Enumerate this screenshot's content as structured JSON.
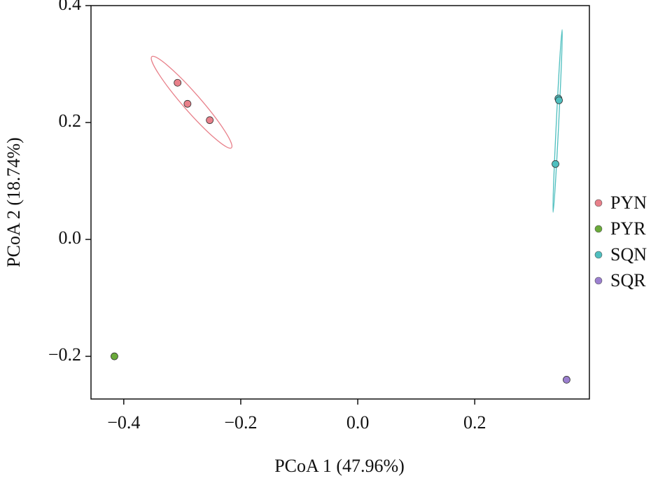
{
  "chart_data": {
    "type": "scatter",
    "x_label": "PCoA 1 (47.96%)",
    "y_label": "PCoA 2 (18.74%)",
    "xlim": [
      -0.456,
      0.396
    ],
    "ylim": [
      -0.273,
      0.4
    ],
    "xticks": [
      {
        "value": -0.4,
        "label": "−0.4"
      },
      {
        "value": -0.2,
        "label": "−0.2"
      },
      {
        "value": 0,
        "label": "0.0"
      },
      0.2
    ],
    "yticks": [
      {
        "value": -0.2,
        "label": "−0.2"
      },
      {
        "value": 0,
        "label": "0.0"
      },
      0.2,
      0.4
    ],
    "series": [
      {
        "name": "PYN",
        "color": "#e8808a",
        "x": [
          -0.308,
          -0.291,
          -0.253
        ],
        "values": [
          0.268,
          0.232,
          0.204
        ]
      },
      {
        "name": "PYR",
        "color": "#6aaa3a",
        "x": [
          -0.416
        ],
        "values": [
          -0.2
        ]
      },
      {
        "name": "SQN",
        "color": "#4fbfbf",
        "x": [
          0.343,
          0.344,
          0.338
        ],
        "values": [
          0.241,
          0.238,
          0.129
        ]
      },
      {
        "name": "SQR",
        "color": "#9b7fcf",
        "x": [
          0.357
        ],
        "values": [
          -0.24
        ]
      }
    ]
  }
}
